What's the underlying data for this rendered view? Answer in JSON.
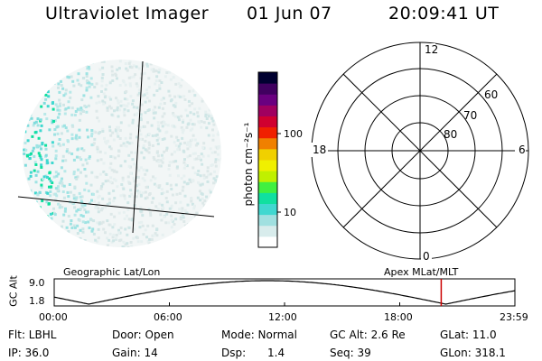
{
  "header": {
    "instrument": "Ultraviolet Imager",
    "date": "01 Jun 07",
    "time": "20:09:41 UT"
  },
  "colorbar": {
    "label": "photon cm⁻²s⁻¹",
    "ticks": [
      {
        "value": 10,
        "label": "10"
      },
      {
        "value": 100,
        "label": "100"
      }
    ],
    "scale": "log",
    "colors": [
      "#ffffff",
      "#d8ecec",
      "#a0e0e0",
      "#40d8d0",
      "#10e0a0",
      "#40f040",
      "#c0f000",
      "#f0f000",
      "#f0d000",
      "#f08000",
      "#f02000",
      "#d00030",
      "#a00060",
      "#6a0080",
      "#400060",
      "#000030"
    ]
  },
  "polar_grid": {
    "mlt_labels": [
      "12",
      "18",
      "6",
      "0"
    ],
    "mlat_labels": [
      "60",
      "70",
      "80"
    ]
  },
  "timeline": {
    "left_title": "Geographic Lat/Lon",
    "right_title": "Apex  MLat/MLT",
    "ylabel": "GC Alt",
    "ytick_top": "9.0",
    "ytick_bottom": "1.8",
    "xticks": [
      "00:00",
      "06:00",
      "12:00",
      "18:00",
      "23:59"
    ],
    "current_time_marker": "20:09:41",
    "marker_color": "#cc0000"
  },
  "footer": {
    "filter": "Flt: LBHL",
    "ip": "IP: 36.0",
    "door": "Door: Open",
    "gain": "Gain: 14",
    "mode": "Mode: Normal",
    "dsp_label": "Dsp:",
    "dsp_value": "1.4",
    "gc_alt": "GC Alt: 2.6 Re",
    "seq": "Seq: 39",
    "glat": "GLat: 11.0",
    "glon": "GLon: 318.1"
  }
}
